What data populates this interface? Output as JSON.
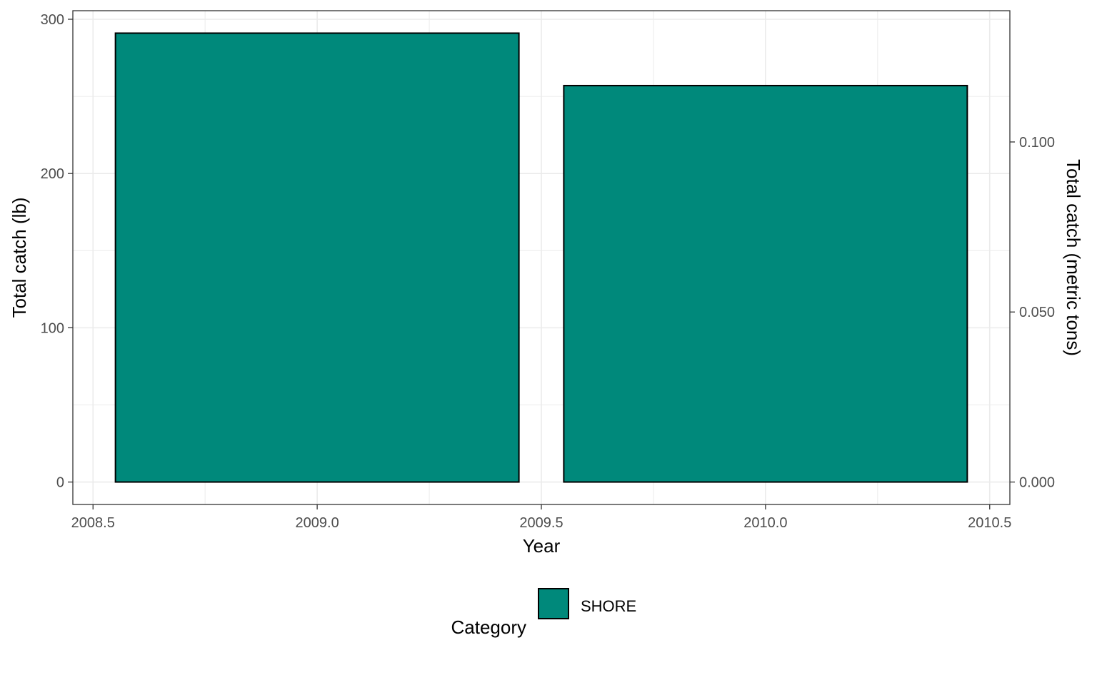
{
  "chart_data": {
    "type": "bar",
    "x": [
      2009.0,
      2010.0
    ],
    "bar_width": 0.9,
    "series": [
      {
        "name": "SHORE",
        "values": [
          291,
          257
        ],
        "color": "#00897B"
      }
    ],
    "xlabel": "Year",
    "ylabel": "Total catch (lb)",
    "ylabel_right": "Total catch (metric tons)",
    "xlim": [
      2008.455,
      2010.545
    ],
    "ylim": [
      -14.55,
      305.55
    ],
    "x_ticks": [
      2008.5,
      2009.0,
      2009.5,
      2010.0,
      2010.5
    ],
    "x_tick_labels": [
      "2008.5",
      "2009.0",
      "2009.5",
      "2010.0",
      "2010.5"
    ],
    "y_ticks": [
      0,
      100,
      200,
      300
    ],
    "y_tick_labels": [
      "0",
      "100",
      "200",
      "300"
    ],
    "y2_ticks_tons": [
      0.0,
      0.05,
      0.1
    ],
    "y2_tick_labels": [
      "0.000",
      "0.050",
      "0.100"
    ],
    "lb_per_metric_ton": 2204.62,
    "grid": true,
    "legend": {
      "title": "Category",
      "position": "bottom",
      "entries": [
        "SHORE"
      ]
    },
    "colors": {
      "bar_fill": "#00897B",
      "bar_stroke": "#000000",
      "grid": "#ebebeb",
      "panel_border": "#333333",
      "tick_text": "#4d4d4d"
    }
  }
}
